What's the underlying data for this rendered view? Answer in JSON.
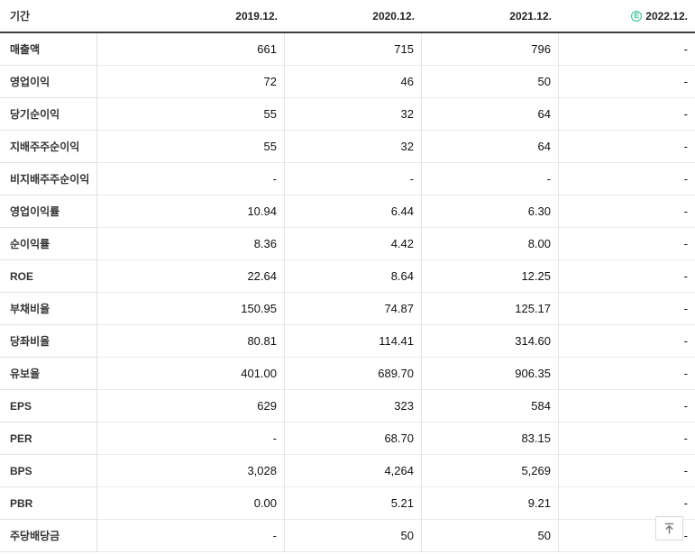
{
  "header": {
    "period_label": "기간",
    "columns": [
      "2019.12.",
      "2020.12.",
      "2021.12.",
      "2022.12."
    ],
    "estimate_badge": {
      "letter": "E",
      "applies_to_column": "2022.12.",
      "color": "#3cc493"
    }
  },
  "table": {
    "rows": [
      {
        "label": "매출액",
        "values": [
          "661",
          "715",
          "796",
          "-"
        ]
      },
      {
        "label": "영업이익",
        "values": [
          "72",
          "46",
          "50",
          "-"
        ]
      },
      {
        "label": "당기순이익",
        "values": [
          "55",
          "32",
          "64",
          "-"
        ]
      },
      {
        "label": "지배주주순이익",
        "values": [
          "55",
          "32",
          "64",
          "-"
        ]
      },
      {
        "label": "비지배주주순이익",
        "values": [
          "-",
          "-",
          "-",
          "-"
        ]
      },
      {
        "label": "영업이익률",
        "values": [
          "10.94",
          "6.44",
          "6.30",
          "-"
        ]
      },
      {
        "label": "순이익률",
        "values": [
          "8.36",
          "4.42",
          "8.00",
          "-"
        ]
      },
      {
        "label": "ROE",
        "values": [
          "22.64",
          "8.64",
          "12.25",
          "-"
        ]
      },
      {
        "label": "부채비율",
        "values": [
          "150.95",
          "74.87",
          "125.17",
          "-"
        ]
      },
      {
        "label": "당좌비율",
        "values": [
          "80.81",
          "114.41",
          "314.60",
          "-"
        ]
      },
      {
        "label": "유보율",
        "values": [
          "401.00",
          "689.70",
          "906.35",
          "-"
        ]
      },
      {
        "label": "EPS",
        "values": [
          "629",
          "323",
          "584",
          "-"
        ]
      },
      {
        "label": "PER",
        "values": [
          "-",
          "68.70",
          "83.15",
          "-"
        ]
      },
      {
        "label": "BPS",
        "values": [
          "3,028",
          "4,264",
          "5,269",
          "-"
        ]
      },
      {
        "label": "PBR",
        "values": [
          "0.00",
          "5.21",
          "9.21",
          "-"
        ]
      },
      {
        "label": "주당배당금",
        "values": [
          "-",
          "50",
          "50",
          "-"
        ]
      }
    ]
  },
  "colors": {
    "header_border": "#3d3d3d",
    "row_border": "#e6e6e6",
    "estimate_green": "#3cc493"
  }
}
